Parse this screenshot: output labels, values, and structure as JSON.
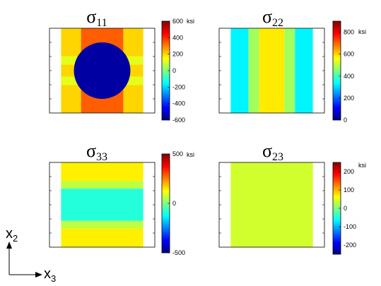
{
  "axes_key": {
    "vertical": {
      "base": "x",
      "sub": "2"
    },
    "horizontal": {
      "base": "x",
      "sub": "3"
    }
  },
  "chart_data": [
    {
      "type": "heatmap",
      "title": {
        "base": "σ",
        "sub": "11"
      },
      "unit": "ksi",
      "colormap": "jet",
      "clim": [
        -600,
        600
      ],
      "colorbar_ticks": [
        600,
        400,
        200,
        0,
        -200,
        -400,
        -600
      ],
      "field": {
        "background": 200,
        "columns": [
          {
            "x_range": [
              0,
              0.11
            ],
            "value": null
          },
          {
            "x_range": [
              0.89,
              1
            ],
            "value": null
          }
        ],
        "bands": [
          {
            "y_range": [
              0,
              0.28
            ],
            "x_range": [
              0.3,
              0.7
            ],
            "value": 340
          },
          {
            "y_range": [
              0.72,
              1
            ],
            "x_range": [
              0.3,
              0.7
            ],
            "value": 340
          },
          {
            "y_range": [
              0.33,
              0.43
            ],
            "x_range": [
              0.11,
              0.89
            ],
            "value": 120
          },
          {
            "y_range": [
              0.57,
              0.67
            ],
            "x_range": [
              0.11,
              0.89
            ],
            "value": 120
          }
        ],
        "inclusion": {
          "center": [
            0.5,
            0.5
          ],
          "radius": 0.37,
          "value": -560
        }
      }
    },
    {
      "type": "heatmap",
      "title": {
        "base": "σ",
        "sub": "22"
      },
      "unit": "ksi",
      "colormap": "jet",
      "clim": [
        0,
        900
      ],
      "colorbar_ticks": [
        800,
        600,
        400,
        200,
        0
      ],
      "field": {
        "columns": [
          {
            "x_range": [
              0,
              0.11
            ],
            "value": null
          },
          {
            "x_range": [
              0.11,
              0.28
            ],
            "value": 330
          },
          {
            "x_range": [
              0.28,
              0.38
            ],
            "value": 480
          },
          {
            "x_range": [
              0.38,
              0.62
            ],
            "value": 580
          },
          {
            "x_range": [
              0.62,
              0.72
            ],
            "value": 480
          },
          {
            "x_range": [
              0.72,
              0.89
            ],
            "value": 330
          },
          {
            "x_range": [
              0.89,
              1
            ],
            "value": null
          }
        ]
      }
    },
    {
      "type": "heatmap",
      "title": {
        "base": "σ",
        "sub": "33"
      },
      "unit": "ksi",
      "colormap": "jet",
      "clim": [
        -500,
        500
      ],
      "colorbar_ticks": [
        500,
        0,
        -500
      ],
      "field": {
        "columns": [
          {
            "x_range": [
              0,
              0.11
            ],
            "value": null
          },
          {
            "x_range": [
              0.89,
              1
            ],
            "value": null
          }
        ],
        "rows": [
          {
            "y_range": [
              0,
              0.22
            ],
            "value": 140
          },
          {
            "y_range": [
              0.22,
              0.31
            ],
            "value": 60
          },
          {
            "y_range": [
              0.31,
              0.69
            ],
            "value": -90
          },
          {
            "y_range": [
              0.69,
              0.78
            ],
            "value": 60
          },
          {
            "y_range": [
              0.78,
              1
            ],
            "value": 140
          }
        ]
      }
    },
    {
      "type": "heatmap",
      "title": {
        "base": "σ",
        "sub": "23"
      },
      "unit": "ksi",
      "colormap": "jet",
      "clim": [
        -250,
        250
      ],
      "colorbar_ticks": [
        200,
        100,
        0,
        -100,
        -200
      ],
      "field": {
        "background": 40,
        "columns": [
          {
            "x_range": [
              0,
              0.11
            ],
            "value": null
          },
          {
            "x_range": [
              0.89,
              1
            ],
            "value": null
          }
        ]
      }
    }
  ]
}
